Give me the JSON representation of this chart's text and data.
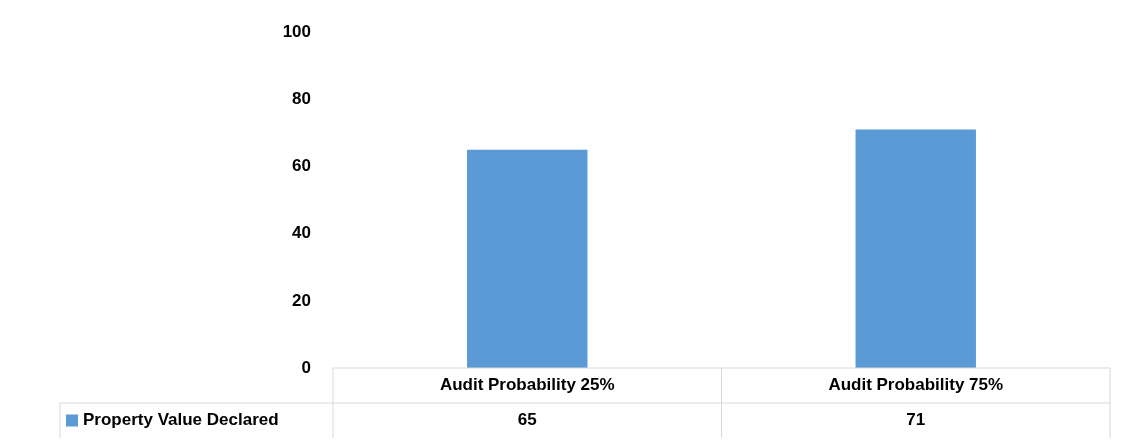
{
  "chart_data": {
    "type": "bar",
    "categories": [
      "Audit Probability 25%",
      "Audit Probability 75%"
    ],
    "series": [
      {
        "name": "Property Value Declared",
        "color": "#5b9bd5",
        "values": [
          65,
          71
        ]
      }
    ],
    "ylim": [
      0,
      100
    ],
    "yticks": [
      0,
      20,
      40,
      60,
      80,
      100
    ],
    "grid": false,
    "legend": "bottom",
    "data_labels": true
  }
}
